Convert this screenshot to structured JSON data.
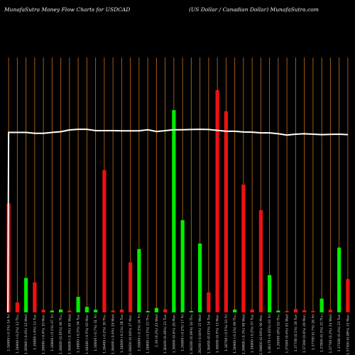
{
  "header": {
    "left_title": "MunafaSutra  Money Flow  Charts for USDCAD",
    "right_title": "(US Dollar / Canadian  Dollar) MunafaSutra.com"
  },
  "colors": {
    "background": "#000000",
    "gridline": "#b5651d",
    "up_bar": "#00ee00",
    "down_bar": "#ee1111",
    "line": "#ffffff"
  },
  "chart_data": {
    "type": "bar",
    "title": "MunafaSutra  Money Flow  Charts for USDCAD",
    "subtitle": "(US Dollar / Canadian  Dollar) MunafaSutra.com",
    "grid": true,
    "ylim": [
      0,
      100
    ],
    "categories": [
      "1.36900 (-0.3%) 14 Fri",
      "1.36900 (-0.2%) 13 Thu",
      "1.36960 (-0.4%) 12 Wed",
      "1.36900 (-0%) 11 Tue",
      "1.36000 (-0.4%) 10 Mon",
      "1.36800 (-0.1%) 07 Fri",
      "1.36600 (0.05%) 06 Thu",
      "1.36600 (-0.3%) 05 Wed",
      "1.36800 (-0.5%) 04 Tue",
      "1.36400 (-0.5%) 03 Mon",
      "1.36600 (-0.7%) 31 Fri",
      "1.36400 (-0.2%) 30 Thu",
      "1.36400 (-0.4%) 29 Wed",
      "1.36600 (-0.1%) 28 Tue",
      "1.36600 (0.04%) 27 Mon",
      "1.36600 (-0.3%) 24 Fri",
      "1.36800 (-0.5%) 23 Thu",
      "1.36 (0.2%) 22 Wed",
      "1.36400 (0.28%) 21 Tue",
      "1.36900 (0.6%) 20 Mon",
      "1.36900 (-0.2%) 17 Fri",
      "1.36200 (0.09%) 16 Thu",
      "1.36200 (-0.04%) 15 Wed",
      "1.36400 (0.03%) 14 Tue",
      "1.36600 (0.5%) 13 Mon",
      "1.36700 (-0.5%) 10 Fri",
      "1.36900 (-0.1%) 09 Thu",
      "1.36800 (-0.3%) 08 Wed",
      "1.36900 (-0.2%) 07 Tue",
      "1.36800 (0.04%) 06 Mon",
      "1.36170 (-0.03%) 03 Fri",
      "1.36500 (0%) 02 Thu",
      "1.37000 (0.4%) 01 Wed",
      "1.37700 (0.1%) 30 Tue",
      "1.37300 (0.6%) 29 Mon",
      "1.37700 (0.7%) 26 Fri",
      "1.37800 (0.3%) 25 Thu",
      "1.37700 (0.2%) 24 Wed",
      "1.37200 (0.4%) 23 Tue",
      "1.37300 (0.08%) 22 Mon"
    ],
    "series": [
      {
        "values": [
          49,
          4.5,
          15.5,
          13.5,
          1.2,
          0.8,
          1.3,
          0.8,
          7,
          2.5,
          1.2,
          64,
          0.8,
          1.3,
          22.5,
          28.5,
          0.6,
          2,
          1.4,
          91,
          41.5,
          0.6,
          31,
          9,
          100,
          90.5,
          1.3,
          57.5,
          1.3,
          46,
          16.8,
          0.8,
          0.6,
          1.5,
          1,
          0.6,
          6.2,
          1.2,
          29.2,
          15
        ],
        "colors": [
          "red",
          "red",
          "green",
          "red",
          "red",
          "green",
          "green",
          "red",
          "green",
          "green",
          "green",
          "red",
          "red",
          "red",
          "red",
          "green",
          "green",
          "green",
          "red",
          "green",
          "green",
          "green",
          "green",
          "red",
          "red",
          "red",
          "green",
          "red",
          "red",
          "red",
          "green",
          "green",
          "red",
          "red",
          "red",
          "red",
          "green",
          "red",
          "green",
          "red"
        ]
      },
      {
        "values": [
          81,
          81,
          81,
          80.6,
          80.6,
          81,
          81.3,
          82.1,
          82.4,
          82.4,
          81.8,
          81.8,
          81.8,
          81.7,
          81.7,
          81.7,
          82.2,
          81.4,
          81.8,
          82.2,
          82.2,
          82.3,
          82.4,
          82.3,
          81.9,
          81.5,
          81.5,
          81.2,
          81.1,
          80.8,
          80.8,
          80.4,
          79.8,
          80.2,
          80.4,
          80.2,
          80.0,
          80.1,
          80.2,
          80
        ]
      }
    ]
  }
}
